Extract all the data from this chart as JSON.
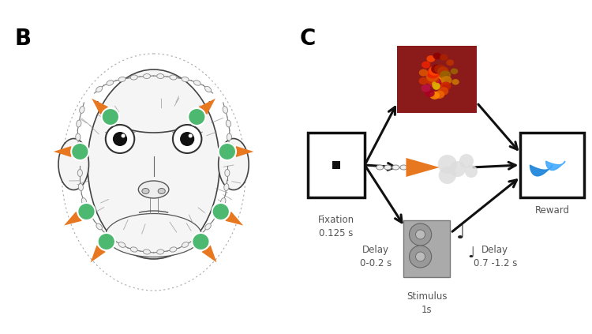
{
  "background_color": "#ffffff",
  "panel_B_label": "B",
  "panel_C_label": "C",
  "label_fontsize": 20,
  "fixation_label": "Fixation\n0.125 s",
  "stimulus_label": "Stimulus\n1s",
  "reward_label": "Reward",
  "delay1_label": "Delay\n0-0.2 s",
  "delay2_label": "Delay\n0.7 -1.2 s",
  "box_color": "#111111",
  "text_color": "#555555",
  "text_fontsize": 8.5,
  "electrode_color_green": "#4DB870",
  "electrode_color_orange": "#E87820",
  "chain_color": "#888888",
  "chain_bead_color": "#dddddd",
  "arrow_color": "#111111"
}
